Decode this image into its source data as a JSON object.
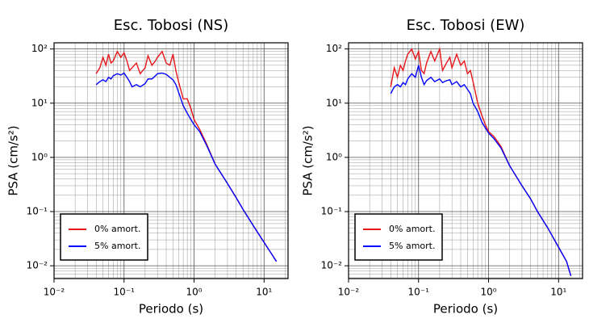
{
  "chart_data": [
    {
      "type": "line",
      "title": "Esc. Tobosi (NS)",
      "x_label": "Periodo (s)",
      "y_label": "PSA (cm/s²)",
      "log_x": true,
      "log_y": true,
      "grid": true,
      "legend": "lower left",
      "xlim": [
        0.01,
        22
      ],
      "ylim": [
        0.0058,
        130
      ],
      "xticks": [
        {
          "value": 0.01,
          "label": "10⁻²"
        },
        {
          "value": 0.1,
          "label": "10⁻¹"
        },
        {
          "value": 1,
          "label": "10⁰"
        },
        {
          "value": 10,
          "label": "10¹"
        }
      ],
      "yticks": [
        {
          "value": 0.01,
          "label": "10⁻²"
        },
        {
          "value": 0.1,
          "label": "10⁻¹"
        },
        {
          "value": 1,
          "label": "10⁰"
        },
        {
          "value": 10,
          "label": "10¹"
        },
        {
          "value": 100,
          "label": "10²"
        }
      ],
      "x": [
        0.04,
        0.045,
        0.05,
        0.055,
        0.06,
        0.065,
        0.07,
        0.08,
        0.09,
        0.1,
        0.11,
        0.12,
        0.13,
        0.15,
        0.17,
        0.2,
        0.22,
        0.25,
        0.28,
        0.3,
        0.35,
        0.4,
        0.45,
        0.5,
        0.55,
        0.6,
        0.7,
        0.8,
        0.9,
        1,
        1.2,
        1.5,
        2,
        3,
        4,
        5,
        7,
        10,
        13,
        15
      ],
      "series": [
        {
          "name": "0% amort.",
          "color": "#e8161b",
          "values": [
            35,
            45,
            70,
            50,
            80,
            55,
            60,
            90,
            70,
            85,
            60,
            40,
            45,
            55,
            35,
            45,
            75,
            50,
            60,
            70,
            90,
            55,
            50,
            80,
            40,
            25,
            12,
            12,
            8,
            5,
            3.3,
            1.8,
            0.75,
            0.33,
            0.18,
            0.11,
            0.055,
            0.027,
            0.016,
            0.012
          ]
        },
        {
          "name": "5% amort.",
          "color": "#0000ff",
          "values": [
            22,
            25,
            27,
            25,
            30,
            28,
            32,
            35,
            33,
            36,
            30,
            25,
            20,
            22,
            20,
            23,
            28,
            28,
            32,
            35,
            36,
            34,
            30,
            27,
            22,
            16,
            9,
            6.5,
            5,
            4,
            3,
            1.7,
            0.75,
            0.33,
            0.18,
            0.11,
            0.055,
            0.027,
            0.016,
            0.012
          ]
        }
      ]
    },
    {
      "type": "line",
      "title": "Esc. Tobosi (EW)",
      "x_label": "Periodo (s)",
      "y_label": "PSA (cm/s²)",
      "log_x": true,
      "log_y": true,
      "grid": true,
      "legend": "lower left",
      "xlim": [
        0.01,
        22
      ],
      "ylim": [
        0.0058,
        130
      ],
      "xticks": [
        {
          "value": 0.01,
          "label": "10⁻²"
        },
        {
          "value": 0.1,
          "label": "10⁻¹"
        },
        {
          "value": 1,
          "label": "10⁰"
        },
        {
          "value": 10,
          "label": "10¹"
        }
      ],
      "yticks": [
        {
          "value": 0.01,
          "label": "10⁻²"
        },
        {
          "value": 0.1,
          "label": "10⁻¹"
        },
        {
          "value": 1,
          "label": "10⁰"
        },
        {
          "value": 10,
          "label": "10¹"
        },
        {
          "value": 100,
          "label": "10²"
        }
      ],
      "x": [
        0.04,
        0.045,
        0.05,
        0.055,
        0.06,
        0.065,
        0.07,
        0.08,
        0.09,
        0.1,
        0.11,
        0.12,
        0.13,
        0.15,
        0.17,
        0.2,
        0.22,
        0.25,
        0.28,
        0.3,
        0.35,
        0.4,
        0.45,
        0.5,
        0.55,
        0.6,
        0.7,
        0.8,
        0.9,
        1,
        1.2,
        1.5,
        2,
        3,
        4,
        5,
        7,
        10,
        13,
        15
      ],
      "series": [
        {
          "name": "0% amort.",
          "color": "#e8161b",
          "values": [
            20,
            45,
            30,
            50,
            40,
            60,
            80,
            100,
            65,
            90,
            40,
            35,
            55,
            90,
            60,
            100,
            40,
            55,
            70,
            45,
            80,
            50,
            60,
            35,
            40,
            25,
            10,
            6,
            4,
            3,
            2.4,
            1.6,
            0.7,
            0.3,
            0.17,
            0.1,
            0.05,
            0.022,
            0.012,
            0.0065
          ]
        },
        {
          "name": "5% amort.",
          "color": "#0000ff",
          "values": [
            15,
            20,
            22,
            20,
            24,
            22,
            28,
            35,
            30,
            50,
            30,
            22,
            26,
            30,
            25,
            28,
            24,
            26,
            27,
            22,
            25,
            20,
            22,
            18,
            15,
            10,
            7,
            4.5,
            3.5,
            2.8,
            2.2,
            1.5,
            0.7,
            0.3,
            0.17,
            0.1,
            0.05,
            0.022,
            0.012,
            0.0065
          ]
        }
      ]
    }
  ]
}
